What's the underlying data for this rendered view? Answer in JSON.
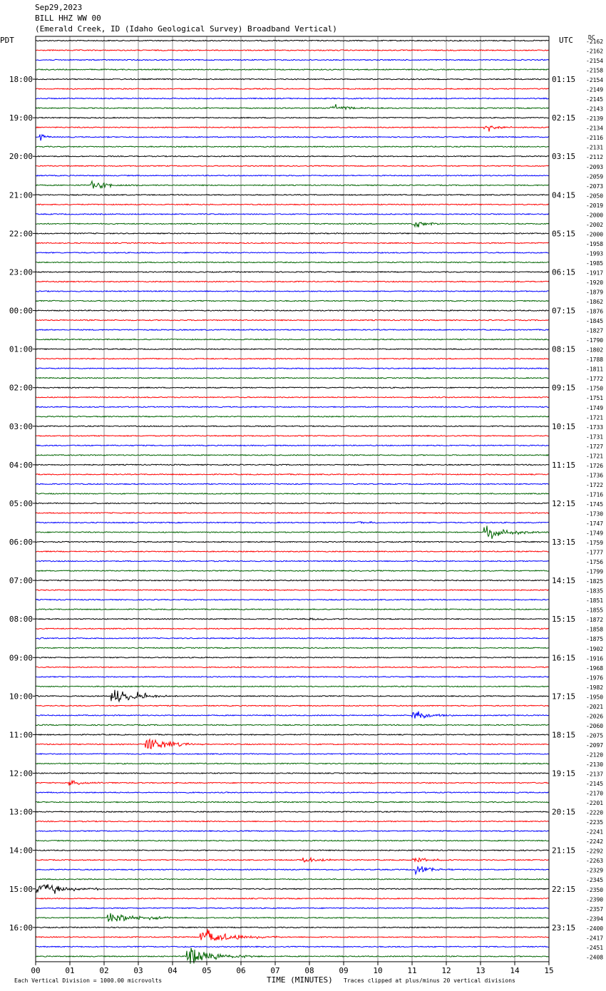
{
  "header": {
    "date": "Sep29,2023",
    "station": "BILL HHZ WW 00",
    "location": "(Emerald Creek, ID (Idaho Geological Survey) Broadband Vertical)"
  },
  "left_tz": "PDT",
  "right_tz": "UTC",
  "dc_label": "DC",
  "footer": {
    "scale": "Each Vertical Division = 1000.00 microvolts",
    "xlabel": "TIME (MINUTES)",
    "clip": "Traces clipped at plus/minus 20 vertical divisions"
  },
  "colors": {
    "trace_cycle": [
      "#000000",
      "#ff0000",
      "#0000ff",
      "#006400"
    ],
    "grid": "#8c8c8c",
    "frame": "#000000"
  },
  "chart_data": {
    "type": "line",
    "description": "helicorder",
    "xlim": [
      0,
      15
    ],
    "x_ticks": [
      "00",
      "01",
      "02",
      "03",
      "04",
      "05",
      "06",
      "07",
      "08",
      "09",
      "10",
      "11",
      "12",
      "13",
      "14",
      "15"
    ],
    "xlabel": "TIME (MINUTES)",
    "rows_count": 96,
    "minutes_per_row": 15,
    "left_hour_labels": [
      "18:00",
      "19:00",
      "20:00",
      "21:00",
      "22:00",
      "23:00",
      "00:00",
      "01:00",
      "02:00",
      "03:00",
      "04:00",
      "05:00",
      "06:00",
      "07:00",
      "08:00",
      "09:00",
      "10:00",
      "11:00",
      "12:00",
      "13:00",
      "14:00",
      "15:00",
      "16:00"
    ],
    "right_hour_labels": [
      "01:15",
      "02:15",
      "03:15",
      "04:15",
      "05:15",
      "06:15",
      "07:15",
      "08:15",
      "09:15",
      "10:15",
      "11:15",
      "12:15",
      "13:15",
      "14:15",
      "15:15",
      "16:15",
      "17:15",
      "18:15",
      "19:15",
      "20:15",
      "21:15",
      "22:15",
      "23:15"
    ],
    "hour_label_first_row": 4,
    "dc_offsets": [
      -2162,
      -2162,
      -2154,
      -2158,
      -2154,
      -2149,
      -2145,
      -2143,
      -2139,
      -2134,
      -2116,
      -2131,
      -2112,
      -2093,
      -2059,
      -2073,
      -2050,
      -2019,
      -2000,
      -2002,
      -2000,
      -1958,
      -1993,
      -1985,
      -1917,
      -1920,
      -1879,
      -1862,
      -1876,
      -1845,
      -1827,
      -1790,
      -1802,
      -1788,
      -1811,
      -1772,
      -1750,
      -1751,
      -1749,
      -1721,
      -1733,
      -1731,
      -1727,
      -1721,
      -1726,
      -1736,
      -1722,
      -1716,
      -1745,
      -1730,
      -1747,
      -1749,
      -1759,
      -1777,
      -1756,
      -1799,
      -1825,
      -1835,
      -1851,
      -1855,
      -1872,
      -1858,
      -1875,
      -1902,
      -1916,
      -1968,
      -1976,
      -1982,
      -1950,
      -2021,
      -2026,
      -2060,
      -2075,
      -2097,
      -2120,
      -2130,
      -2137,
      -2145,
      -2170,
      -2201,
      -2220,
      -2235,
      -2241,
      -2242,
      -2292,
      -2263,
      -2329,
      -2345,
      -2350,
      -2390,
      -2357,
      -2394,
      -2400,
      -2417,
      -2451,
      -2408
    ],
    "events": [
      {
        "row": 7,
        "start_min": 8.6,
        "end_min": 10.6,
        "amp_div": 0.8
      },
      {
        "row": 9,
        "start_min": 13.1,
        "end_min": 15.0,
        "amp_div": 0.6
      },
      {
        "row": 10,
        "start_min": 0.1,
        "end_min": 0.6,
        "amp_div": 1.4
      },
      {
        "row": 15,
        "start_min": 1.6,
        "end_min": 3.5,
        "amp_div": 1.3
      },
      {
        "row": 19,
        "start_min": 11.0,
        "end_min": 12.8,
        "amp_div": 1.0
      },
      {
        "row": 50,
        "start_min": 9.4,
        "end_min": 10.9,
        "amp_div": 0.3
      },
      {
        "row": 51,
        "start_min": 13.1,
        "end_min": 15.0,
        "amp_div": 2.4
      },
      {
        "row": 60,
        "start_min": 8.0,
        "end_min": 11.2,
        "amp_div": 0.3
      },
      {
        "row": 62,
        "start_min": 0.1,
        "end_min": 0.6,
        "amp_div": 0.3
      },
      {
        "row": 68,
        "start_min": 0.0,
        "end_min": 0.7,
        "amp_div": 0.3
      },
      {
        "row": 68,
        "start_min": 2.2,
        "end_min": 4.3,
        "amp_div": 2.8
      },
      {
        "row": 70,
        "start_min": 11.0,
        "end_min": 12.5,
        "amp_div": 2.2
      },
      {
        "row": 73,
        "start_min": 3.2,
        "end_min": 5.0,
        "amp_div": 2.6
      },
      {
        "row": 77,
        "start_min": 0.9,
        "end_min": 2.5,
        "amp_div": 0.8
      },
      {
        "row": 85,
        "start_min": 7.8,
        "end_min": 9.3,
        "amp_div": 0.9
      },
      {
        "row": 85,
        "start_min": 11.0,
        "end_min": 12.4,
        "amp_div": 0.9
      },
      {
        "row": 86,
        "start_min": 11.1,
        "end_min": 12.6,
        "amp_div": 1.2
      },
      {
        "row": 88,
        "start_min": 0.0,
        "end_min": 2.3,
        "amp_div": 2.5
      },
      {
        "row": 91,
        "start_min": 2.1,
        "end_min": 5.0,
        "amp_div": 1.6
      },
      {
        "row": 93,
        "start_min": 4.8,
        "end_min": 7.3,
        "amp_div": 2.8
      },
      {
        "row": 95,
        "start_min": 4.4,
        "end_min": 6.8,
        "amp_div": 3.0
      }
    ]
  }
}
